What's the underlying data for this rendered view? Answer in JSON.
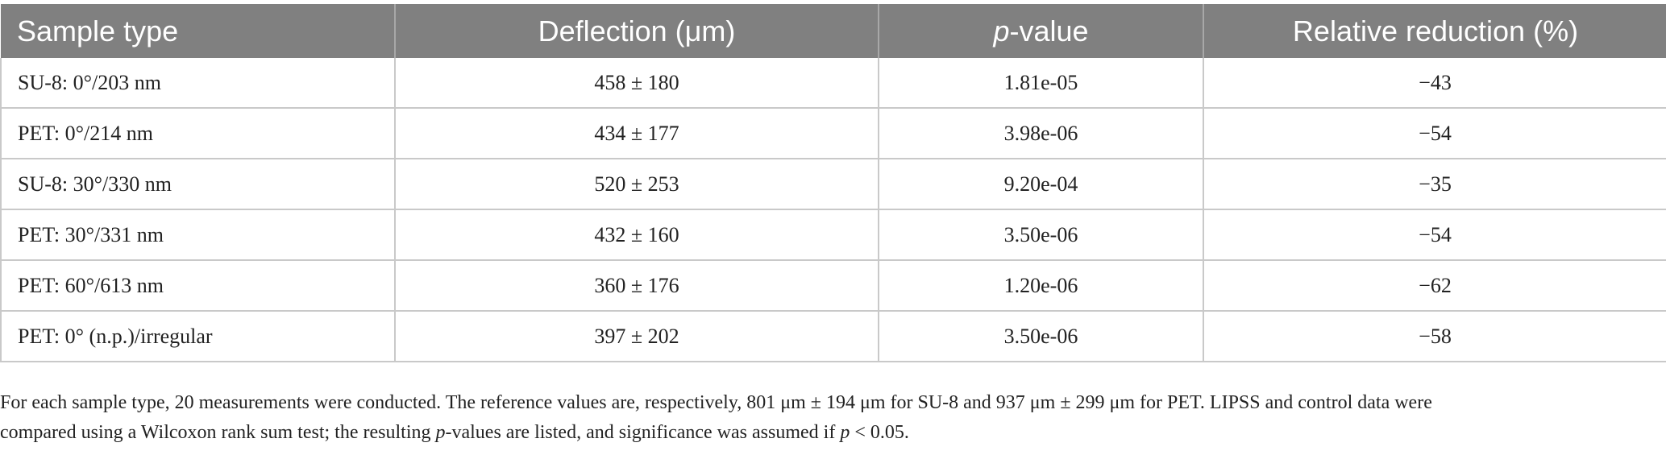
{
  "table": {
    "headers": {
      "sample_type": "Sample type",
      "deflection": "Deflection (μm)",
      "p_value_italic": "p",
      "p_value_rest": "-value",
      "relative_reduction": "Relative reduction (%)"
    },
    "rows": [
      {
        "sample": "SU-8: 0°/203 nm",
        "deflection": "458 ± 180",
        "p_value": "1.81e-05",
        "reduction": "−43"
      },
      {
        "sample": "PET: 0°/214 nm",
        "deflection": "434 ± 177",
        "p_value": "3.98e-06",
        "reduction": "−54"
      },
      {
        "sample": "SU-8: 30°/330 nm",
        "deflection": "520 ± 253",
        "p_value": "9.20e-04",
        "reduction": "−35"
      },
      {
        "sample": "PET: 30°/331 nm",
        "deflection": "432 ± 160",
        "p_value": "3.50e-06",
        "reduction": "−54"
      },
      {
        "sample": "PET: 60°/613 nm",
        "deflection": "360 ± 176",
        "p_value": "1.20e-06",
        "reduction": "−62"
      },
      {
        "sample": "PET: 0° (n.p.)/irregular",
        "deflection": "397 ± 202",
        "p_value": "3.50e-06",
        "reduction": "−58"
      }
    ]
  },
  "footnote": {
    "line1": "For each sample type, 20 measurements were conducted. The reference values are, respectively, 801 μm ± 194 μm for SU-8 and 937 μm ± 299 μm for PET. LIPSS and control data were",
    "line2_a": "compared using a Wilcoxon rank sum test; the resulting ",
    "line2_p1": "p",
    "line2_b": "-values are listed, and significance was assumed if ",
    "line2_p2": "p",
    "line2_c": " < 0.05."
  }
}
